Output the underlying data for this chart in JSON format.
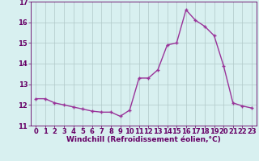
{
  "x": [
    0,
    1,
    2,
    3,
    4,
    5,
    6,
    7,
    8,
    9,
    10,
    11,
    12,
    13,
    14,
    15,
    16,
    17,
    18,
    19,
    20,
    21,
    22,
    23
  ],
  "y": [
    12.3,
    12.3,
    12.1,
    12.0,
    11.9,
    11.8,
    11.7,
    11.65,
    11.65,
    11.45,
    11.75,
    13.3,
    13.3,
    13.7,
    14.9,
    15.0,
    16.6,
    16.1,
    15.8,
    15.35,
    13.9,
    12.1,
    11.95,
    11.85
  ],
  "line_color": "#993399",
  "marker": "+",
  "marker_size": 3,
  "xlabel": "Windchill (Refroidissement éolien,°C)",
  "ylim": [
    11.0,
    17.0
  ],
  "xlim": [
    -0.5,
    23.5
  ],
  "yticks": [
    11,
    12,
    13,
    14,
    15,
    16,
    17
  ],
  "xticks": [
    0,
    1,
    2,
    3,
    4,
    5,
    6,
    7,
    8,
    9,
    10,
    11,
    12,
    13,
    14,
    15,
    16,
    17,
    18,
    19,
    20,
    21,
    22,
    23
  ],
  "bg_color": "#d8f0f0",
  "grid_color": "#b0c8c8",
  "font_color": "#660066",
  "xlabel_fontsize": 6.5,
  "tick_fontsize": 6.0,
  "linewidth": 1.0,
  "markeredgewidth": 1.0
}
